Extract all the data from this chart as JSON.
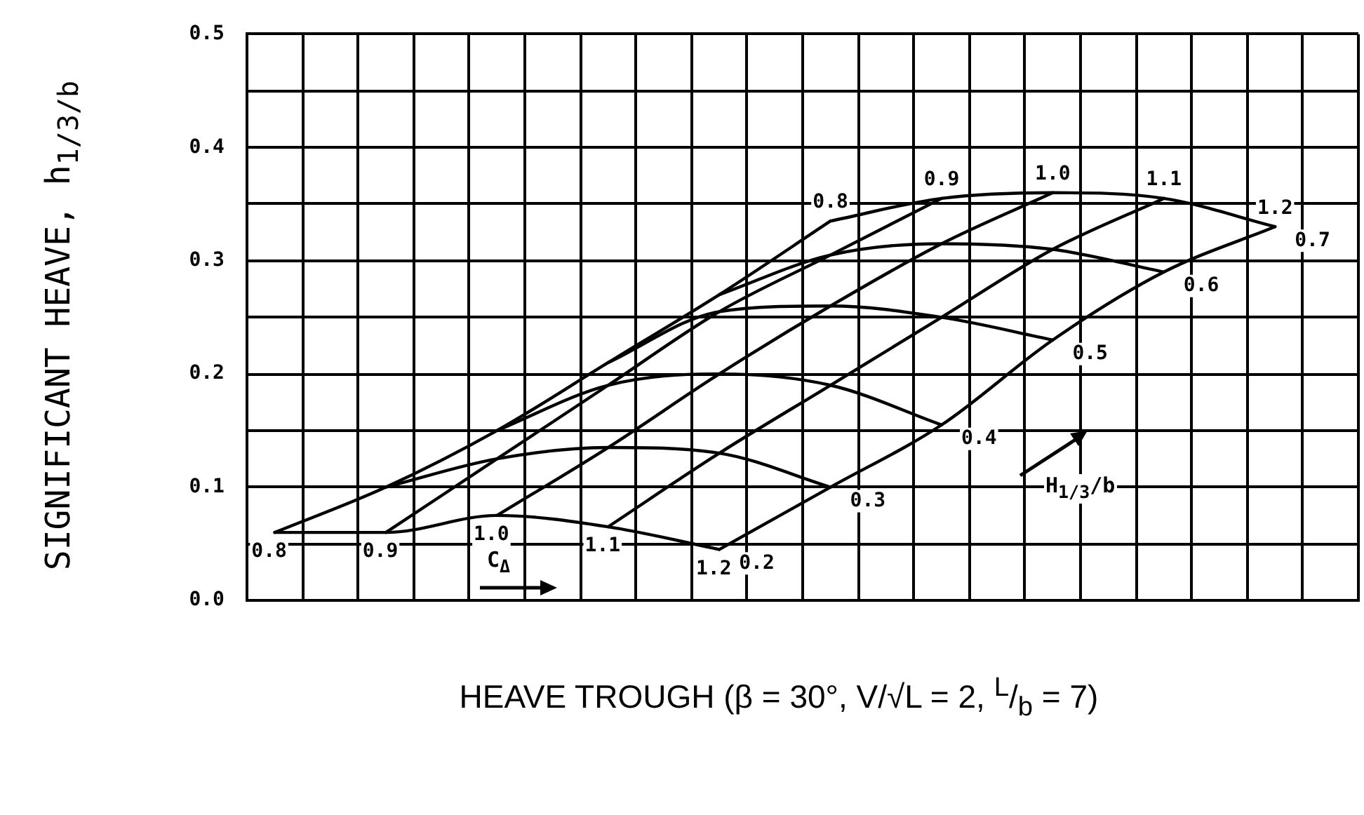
{
  "chart_data": {
    "type": "line",
    "xlabel": "HEAVE TROUGH (β = 30°, V/√L = 2, $^{L}$/$_{b}$ = 7)",
    "ylabel": "SIGNIFICANT HEAVE, h$_{1/3/b}$",
    "annotations": [
      "C$_{Δ}$",
      "H$_{1/3}$/b"
    ],
    "categories": [
      null,
      null,
      null,
      null,
      null,
      null,
      null,
      null,
      null,
      null,
      null,
      null,
      null,
      null,
      null,
      null,
      null,
      null,
      null,
      null
    ],
    "series": [
      {
        "name": "0.2",
        "color": "#000000",
        "values": [
          0.06,
          null,
          0.06,
          null,
          0.075,
          null,
          0.065,
          null,
          0.045,
          null,
          null,
          null,
          null,
          null,
          null,
          null,
          null,
          null,
          null,
          null
        ]
      },
      {
        "name": "0.3",
        "color": "#000000",
        "values": [
          null,
          null,
          0.1,
          null,
          0.125,
          null,
          0.135,
          null,
          0.13,
          null,
          0.1,
          null,
          null,
          null,
          null,
          null,
          null,
          null,
          null,
          null
        ]
      },
      {
        "name": "0.4",
        "color": "#000000",
        "values": [
          null,
          null,
          null,
          null,
          0.15,
          null,
          0.19,
          null,
          0.2,
          null,
          0.19,
          null,
          0.155,
          null,
          null,
          null,
          null,
          null,
          null,
          null
        ]
      },
      {
        "name": "0.5",
        "color": "#000000",
        "values": [
          null,
          null,
          null,
          null,
          null,
          null,
          0.21,
          null,
          0.255,
          null,
          0.26,
          null,
          0.25,
          null,
          0.23,
          null,
          null,
          null,
          null,
          null
        ]
      },
      {
        "name": "0.6",
        "color": "#000000",
        "values": [
          null,
          null,
          null,
          null,
          null,
          null,
          null,
          null,
          0.27,
          null,
          0.305,
          null,
          0.315,
          null,
          0.31,
          null,
          0.29,
          null,
          null,
          null
        ]
      },
      {
        "name": "0.7",
        "color": "#000000",
        "values": [
          null,
          null,
          null,
          null,
          null,
          null,
          null,
          null,
          null,
          null,
          0.335,
          null,
          0.355,
          null,
          0.36,
          null,
          0.355,
          null,
          0.33,
          null
        ]
      },
      {
        "name": "0.8",
        "color": "#000000",
        "values": [
          0.06,
          null,
          0.1,
          null,
          0.15,
          null,
          0.21,
          null,
          0.27,
          null,
          0.335,
          null,
          null,
          null,
          null,
          null,
          null,
          null,
          null,
          null
        ]
      },
      {
        "name": "0.9",
        "color": "#000000",
        "values": [
          null,
          null,
          0.06,
          null,
          0.125,
          null,
          0.19,
          null,
          0.255,
          null,
          0.305,
          null,
          0.355,
          null,
          null,
          null,
          null,
          null,
          null,
          null
        ]
      },
      {
        "name": "1.0",
        "color": "#000000",
        "values": [
          null,
          null,
          null,
          null,
          0.075,
          null,
          0.135,
          null,
          0.2,
          null,
          0.26,
          null,
          0.315,
          null,
          0.36,
          null,
          null,
          null,
          null,
          null
        ]
      },
      {
        "name": "1.1",
        "color": "#000000",
        "values": [
          null,
          null,
          null,
          null,
          null,
          null,
          0.065,
          null,
          0.13,
          null,
          0.19,
          null,
          0.25,
          null,
          0.31,
          null,
          0.355,
          null,
          null,
          null
        ]
      },
      {
        "name": "1.2",
        "color": "#000000",
        "values": [
          null,
          null,
          null,
          null,
          null,
          null,
          null,
          null,
          0.045,
          null,
          0.1,
          null,
          0.155,
          null,
          0.23,
          null,
          0.29,
          null,
          0.33,
          null
        ]
      }
    ],
    "ylim": [
      0,
      0.5
    ],
    "yticks": [
      {
        "value": 0,
        "label": "0.0"
      },
      {
        "value": 0.05,
        "label": null
      },
      0.1,
      {
        "value": 0.15,
        "label": null
      },
      0.2,
      {
        "value": 0.25,
        "label": null
      },
      0.3,
      {
        "value": 0.35,
        "label": null
      },
      0.4,
      {
        "value": 0.45,
        "label": null
      },
      0.5
    ],
    "grid": true,
    "legend": false,
    "tick_labels": "y",
    "marker": "none"
  }
}
